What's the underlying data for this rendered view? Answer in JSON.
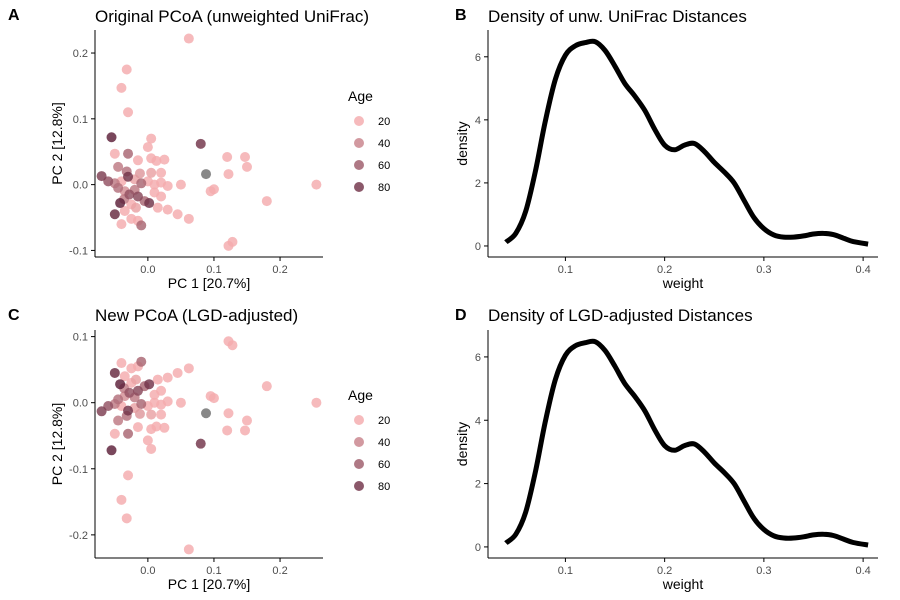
{
  "colors": {
    "age_low": "#FFB5B5",
    "age_high": "#5B1F38",
    "na": "#6E6E6E",
    "curve": "#000000",
    "axis": "#000000",
    "tick_label": "#4D4D4D"
  },
  "panels": {
    "A": {
      "tag": "A",
      "title": "Original PCoA (unweighted UniFrac)"
    },
    "B": {
      "tag": "B",
      "title": "Density of unw. UniFrac Distances"
    },
    "C": {
      "tag": "C",
      "title": "New PCoA (LGD-adjusted)"
    },
    "D": {
      "tag": "D",
      "title": "Density of LGD-adjusted Distances"
    }
  },
  "chart_data": [
    {
      "id": "A",
      "type": "scatter",
      "title": "Original PCoA (unweighted UniFrac)",
      "xlabel": "PC 1 [20.7%]",
      "ylabel": "PC 2 [12.8%]",
      "xlim": [
        -0.08,
        0.265
      ],
      "ylim": [
        -0.11,
        0.235
      ],
      "xticks": [
        0.0,
        0.1,
        0.2
      ],
      "xtick_labels": [
        "0.0",
        "0.1",
        "0.2"
      ],
      "yticks": [
        -0.1,
        0.0,
        0.1,
        0.2
      ],
      "ytick_labels": [
        "-0.1",
        "0.0",
        "0.1",
        "0.2"
      ],
      "legend": {
        "title": "Age",
        "position": "right",
        "labels": [
          "20",
          "40",
          "60",
          "80"
        ],
        "values": [
          20,
          40,
          60,
          80
        ]
      },
      "color_range": [
        15,
        90
      ],
      "points": [
        {
          "x": 0.062,
          "y": 0.222,
          "age": 20
        },
        {
          "x": -0.032,
          "y": 0.175,
          "age": 20
        },
        {
          "x": -0.04,
          "y": 0.147,
          "age": 20
        },
        {
          "x": -0.03,
          "y": 0.11,
          "age": 20
        },
        {
          "x": -0.055,
          "y": 0.072,
          "age": 90
        },
        {
          "x": 0.08,
          "y": 0.062,
          "age": 80
        },
        {
          "x": 0.005,
          "y": 0.07,
          "age": 20
        },
        {
          "x": -0.05,
          "y": 0.047,
          "age": 20
        },
        {
          "x": -0.03,
          "y": 0.047,
          "age": 55
        },
        {
          "x": 0.0,
          "y": 0.057,
          "age": 20
        },
        {
          "x": 0.005,
          "y": 0.04,
          "age": 20
        },
        {
          "x": 0.013,
          "y": 0.036,
          "age": 20
        },
        {
          "x": 0.025,
          "y": 0.038,
          "age": 20
        },
        {
          "x": -0.015,
          "y": 0.037,
          "age": 20
        },
        {
          "x": 0.12,
          "y": 0.042,
          "age": 20
        },
        {
          "x": 0.147,
          "y": 0.042,
          "age": 20
        },
        {
          "x": 0.15,
          "y": 0.027,
          "age": 20
        },
        {
          "x": 0.122,
          "y": 0.016,
          "age": 20
        },
        {
          "x": 0.088,
          "y": 0.016,
          "age": null
        },
        {
          "x": -0.045,
          "y": 0.027,
          "age": 45
        },
        {
          "x": -0.032,
          "y": 0.02,
          "age": 50
        },
        {
          "x": -0.012,
          "y": 0.017,
          "age": 30
        },
        {
          "x": 0.005,
          "y": 0.018,
          "age": 25
        },
        {
          "x": 0.02,
          "y": 0.018,
          "age": 20
        },
        {
          "x": -0.07,
          "y": 0.013,
          "age": 75
        },
        {
          "x": -0.06,
          "y": 0.005,
          "age": 65
        },
        {
          "x": -0.05,
          "y": 0.002,
          "age": 45
        },
        {
          "x": -0.04,
          "y": 0.005,
          "age": 20
        },
        {
          "x": -0.03,
          "y": 0.012,
          "age": 80
        },
        {
          "x": -0.02,
          "y": 0.008,
          "age": 25
        },
        {
          "x": -0.01,
          "y": 0.002,
          "age": 55
        },
        {
          "x": 0.0,
          "y": 0.005,
          "age": 20
        },
        {
          "x": 0.01,
          "y": 0.0,
          "age": 20
        },
        {
          "x": 0.02,
          "y": 0.003,
          "age": 20
        },
        {
          "x": 0.03,
          "y": -0.002,
          "age": 20
        },
        {
          "x": 0.05,
          "y": 0.0,
          "age": 20
        },
        {
          "x": 0.255,
          "y": 0.0,
          "age": 20
        },
        {
          "x": -0.045,
          "y": -0.005,
          "age": 50
        },
        {
          "x": -0.035,
          "y": -0.01,
          "age": 35
        },
        {
          "x": -0.028,
          "y": -0.015,
          "age": 65
        },
        {
          "x": -0.02,
          "y": -0.008,
          "age": 45
        },
        {
          "x": -0.015,
          "y": -0.018,
          "age": 70
        },
        {
          "x": -0.005,
          "y": -0.025,
          "age": 55
        },
        {
          "x": 0.002,
          "y": -0.028,
          "age": 80
        },
        {
          "x": 0.01,
          "y": -0.012,
          "age": 20
        },
        {
          "x": 0.02,
          "y": -0.018,
          "age": 20
        },
        {
          "x": 0.095,
          "y": -0.01,
          "age": 20
        },
        {
          "x": 0.1,
          "y": -0.007,
          "age": 20
        },
        {
          "x": 0.18,
          "y": -0.025,
          "age": 20
        },
        {
          "x": -0.036,
          "y": -0.022,
          "age": 45
        },
        {
          "x": -0.042,
          "y": -0.028,
          "age": 90
        },
        {
          "x": -0.025,
          "y": -0.03,
          "age": 20
        },
        {
          "x": -0.018,
          "y": -0.035,
          "age": 25
        },
        {
          "x": 0.015,
          "y": -0.035,
          "age": 20
        },
        {
          "x": 0.03,
          "y": -0.038,
          "age": 20
        },
        {
          "x": -0.05,
          "y": -0.045,
          "age": 85
        },
        {
          "x": -0.035,
          "y": -0.04,
          "age": 20
        },
        {
          "x": 0.045,
          "y": -0.045,
          "age": 20
        },
        {
          "x": -0.04,
          "y": -0.06,
          "age": 20
        },
        {
          "x": -0.025,
          "y": -0.052,
          "age": 20
        },
        {
          "x": -0.015,
          "y": -0.055,
          "age": 20
        },
        {
          "x": -0.01,
          "y": -0.062,
          "age": 55
        },
        {
          "x": 0.062,
          "y": -0.052,
          "age": 20
        },
        {
          "x": 0.128,
          "y": -0.087,
          "age": 20
        },
        {
          "x": 0.122,
          "y": -0.093,
          "age": 20
        }
      ]
    },
    {
      "id": "B",
      "type": "line",
      "title": "Density of unw. UniFrac Distances",
      "xlabel": "weight",
      "ylabel": "density",
      "xlim": [
        0.022,
        0.415
      ],
      "ylim": [
        -0.35,
        6.85
      ],
      "xticks": [
        0.1,
        0.2,
        0.3,
        0.4
      ],
      "xtick_labels": [
        "0.1",
        "0.2",
        "0.3",
        "0.4"
      ],
      "yticks": [
        0,
        2,
        4,
        6
      ],
      "ytick_labels": [
        "0",
        "2",
        "4",
        "6"
      ],
      "x": [
        0.04,
        0.05,
        0.06,
        0.07,
        0.08,
        0.09,
        0.1,
        0.11,
        0.12,
        0.13,
        0.14,
        0.15,
        0.16,
        0.17,
        0.18,
        0.19,
        0.2,
        0.21,
        0.22,
        0.23,
        0.24,
        0.25,
        0.26,
        0.27,
        0.28,
        0.29,
        0.3,
        0.31,
        0.32,
        0.33,
        0.34,
        0.35,
        0.36,
        0.37,
        0.38,
        0.39,
        0.405
      ],
      "y": [
        0.12,
        0.4,
        1.1,
        2.4,
        4.0,
        5.3,
        6.05,
        6.35,
        6.45,
        6.48,
        6.2,
        5.7,
        5.15,
        4.75,
        4.3,
        3.7,
        3.2,
        3.05,
        3.2,
        3.25,
        3.0,
        2.65,
        2.35,
        2.0,
        1.45,
        0.9,
        0.55,
        0.35,
        0.28,
        0.28,
        0.32,
        0.38,
        0.4,
        0.36,
        0.25,
        0.14,
        0.06
      ]
    },
    {
      "id": "C",
      "type": "scatter",
      "title": "New PCoA (LGD-adjusted)",
      "xlabel": "PC 1 [20.7%]",
      "ylabel": "PC 2 [12.8%]",
      "xlim": [
        -0.08,
        0.265
      ],
      "ylim": [
        -0.235,
        0.11
      ],
      "xticks": [
        0.0,
        0.1,
        0.2
      ],
      "xtick_labels": [
        "0.0",
        "0.1",
        "0.2"
      ],
      "yticks": [
        -0.2,
        -0.1,
        0.0,
        0.1
      ],
      "ytick_labels": [
        "-0.2",
        "-0.1",
        "0.0",
        "0.1"
      ],
      "legend": {
        "title": "Age",
        "position": "right",
        "labels": [
          "20",
          "40",
          "60",
          "80"
        ],
        "values": [
          20,
          40,
          60,
          80
        ]
      },
      "color_range": [
        15,
        90
      ],
      "points": [
        {
          "x": 0.062,
          "y": -0.222,
          "age": 20
        },
        {
          "x": -0.032,
          "y": -0.175,
          "age": 20
        },
        {
          "x": -0.04,
          "y": -0.147,
          "age": 20
        },
        {
          "x": -0.03,
          "y": -0.11,
          "age": 20
        },
        {
          "x": -0.055,
          "y": -0.072,
          "age": 90
        },
        {
          "x": 0.08,
          "y": -0.062,
          "age": 80
        },
        {
          "x": 0.005,
          "y": -0.07,
          "age": 20
        },
        {
          "x": -0.05,
          "y": -0.047,
          "age": 20
        },
        {
          "x": -0.03,
          "y": -0.047,
          "age": 55
        },
        {
          "x": 0.0,
          "y": -0.057,
          "age": 20
        },
        {
          "x": 0.005,
          "y": -0.04,
          "age": 20
        },
        {
          "x": 0.013,
          "y": -0.036,
          "age": 20
        },
        {
          "x": 0.025,
          "y": -0.038,
          "age": 20
        },
        {
          "x": -0.015,
          "y": -0.037,
          "age": 20
        },
        {
          "x": 0.12,
          "y": -0.042,
          "age": 20
        },
        {
          "x": 0.147,
          "y": -0.042,
          "age": 20
        },
        {
          "x": 0.15,
          "y": -0.027,
          "age": 20
        },
        {
          "x": 0.122,
          "y": -0.016,
          "age": 20
        },
        {
          "x": 0.088,
          "y": -0.016,
          "age": null
        },
        {
          "x": -0.045,
          "y": -0.027,
          "age": 45
        },
        {
          "x": -0.032,
          "y": -0.02,
          "age": 50
        },
        {
          "x": -0.012,
          "y": -0.017,
          "age": 30
        },
        {
          "x": 0.005,
          "y": -0.018,
          "age": 25
        },
        {
          "x": 0.02,
          "y": -0.018,
          "age": 20
        },
        {
          "x": -0.07,
          "y": -0.013,
          "age": 75
        },
        {
          "x": -0.06,
          "y": -0.005,
          "age": 65
        },
        {
          "x": -0.05,
          "y": -0.002,
          "age": 45
        },
        {
          "x": -0.04,
          "y": -0.005,
          "age": 20
        },
        {
          "x": -0.03,
          "y": -0.012,
          "age": 80
        },
        {
          "x": -0.02,
          "y": -0.008,
          "age": 25
        },
        {
          "x": -0.01,
          "y": -0.002,
          "age": 55
        },
        {
          "x": 0.0,
          "y": -0.005,
          "age": 20
        },
        {
          "x": 0.01,
          "y": 0.0,
          "age": 20
        },
        {
          "x": 0.02,
          "y": -0.003,
          "age": 20
        },
        {
          "x": 0.03,
          "y": 0.002,
          "age": 20
        },
        {
          "x": 0.05,
          "y": 0.0,
          "age": 20
        },
        {
          "x": 0.255,
          "y": 0.0,
          "age": 20
        },
        {
          "x": -0.045,
          "y": 0.005,
          "age": 50
        },
        {
          "x": -0.035,
          "y": 0.01,
          "age": 35
        },
        {
          "x": -0.028,
          "y": 0.015,
          "age": 65
        },
        {
          "x": -0.02,
          "y": 0.008,
          "age": 45
        },
        {
          "x": -0.015,
          "y": 0.018,
          "age": 70
        },
        {
          "x": -0.005,
          "y": 0.025,
          "age": 55
        },
        {
          "x": 0.002,
          "y": 0.028,
          "age": 80
        },
        {
          "x": 0.01,
          "y": 0.012,
          "age": 20
        },
        {
          "x": 0.02,
          "y": 0.018,
          "age": 20
        },
        {
          "x": 0.095,
          "y": 0.01,
          "age": 20
        },
        {
          "x": 0.1,
          "y": 0.007,
          "age": 20
        },
        {
          "x": 0.18,
          "y": 0.025,
          "age": 20
        },
        {
          "x": -0.036,
          "y": 0.022,
          "age": 45
        },
        {
          "x": -0.042,
          "y": 0.028,
          "age": 90
        },
        {
          "x": -0.025,
          "y": 0.03,
          "age": 20
        },
        {
          "x": -0.018,
          "y": 0.035,
          "age": 25
        },
        {
          "x": 0.015,
          "y": 0.035,
          "age": 20
        },
        {
          "x": 0.03,
          "y": 0.038,
          "age": 20
        },
        {
          "x": -0.05,
          "y": 0.045,
          "age": 85
        },
        {
          "x": -0.035,
          "y": 0.04,
          "age": 20
        },
        {
          "x": 0.045,
          "y": 0.045,
          "age": 20
        },
        {
          "x": -0.04,
          "y": 0.06,
          "age": 20
        },
        {
          "x": -0.025,
          "y": 0.052,
          "age": 20
        },
        {
          "x": -0.015,
          "y": 0.055,
          "age": 20
        },
        {
          "x": -0.01,
          "y": 0.062,
          "age": 55
        },
        {
          "x": 0.062,
          "y": 0.052,
          "age": 20
        },
        {
          "x": 0.128,
          "y": 0.087,
          "age": 20
        },
        {
          "x": 0.122,
          "y": 0.093,
          "age": 20
        }
      ]
    },
    {
      "id": "D",
      "type": "line",
      "title": "Density of LGD-adjusted Distances",
      "xlabel": "weight",
      "ylabel": "density",
      "xlim": [
        0.022,
        0.415
      ],
      "ylim": [
        -0.35,
        6.85
      ],
      "xticks": [
        0.1,
        0.2,
        0.3,
        0.4
      ],
      "xtick_labels": [
        "0.1",
        "0.2",
        "0.3",
        "0.4"
      ],
      "yticks": [
        0,
        2,
        4,
        6
      ],
      "ytick_labels": [
        "0",
        "2",
        "4",
        "6"
      ],
      "x": [
        0.04,
        0.05,
        0.06,
        0.07,
        0.08,
        0.09,
        0.1,
        0.11,
        0.12,
        0.13,
        0.14,
        0.15,
        0.16,
        0.17,
        0.18,
        0.19,
        0.2,
        0.21,
        0.22,
        0.23,
        0.24,
        0.25,
        0.26,
        0.27,
        0.28,
        0.29,
        0.3,
        0.31,
        0.32,
        0.33,
        0.34,
        0.35,
        0.36,
        0.37,
        0.38,
        0.39,
        0.405
      ],
      "y": [
        0.12,
        0.4,
        1.1,
        2.4,
        4.0,
        5.3,
        6.05,
        6.35,
        6.45,
        6.48,
        6.2,
        5.7,
        5.15,
        4.75,
        4.3,
        3.7,
        3.2,
        3.05,
        3.2,
        3.25,
        3.0,
        2.65,
        2.35,
        2.0,
        1.45,
        0.9,
        0.55,
        0.35,
        0.28,
        0.28,
        0.32,
        0.38,
        0.4,
        0.36,
        0.25,
        0.14,
        0.06
      ]
    }
  ]
}
